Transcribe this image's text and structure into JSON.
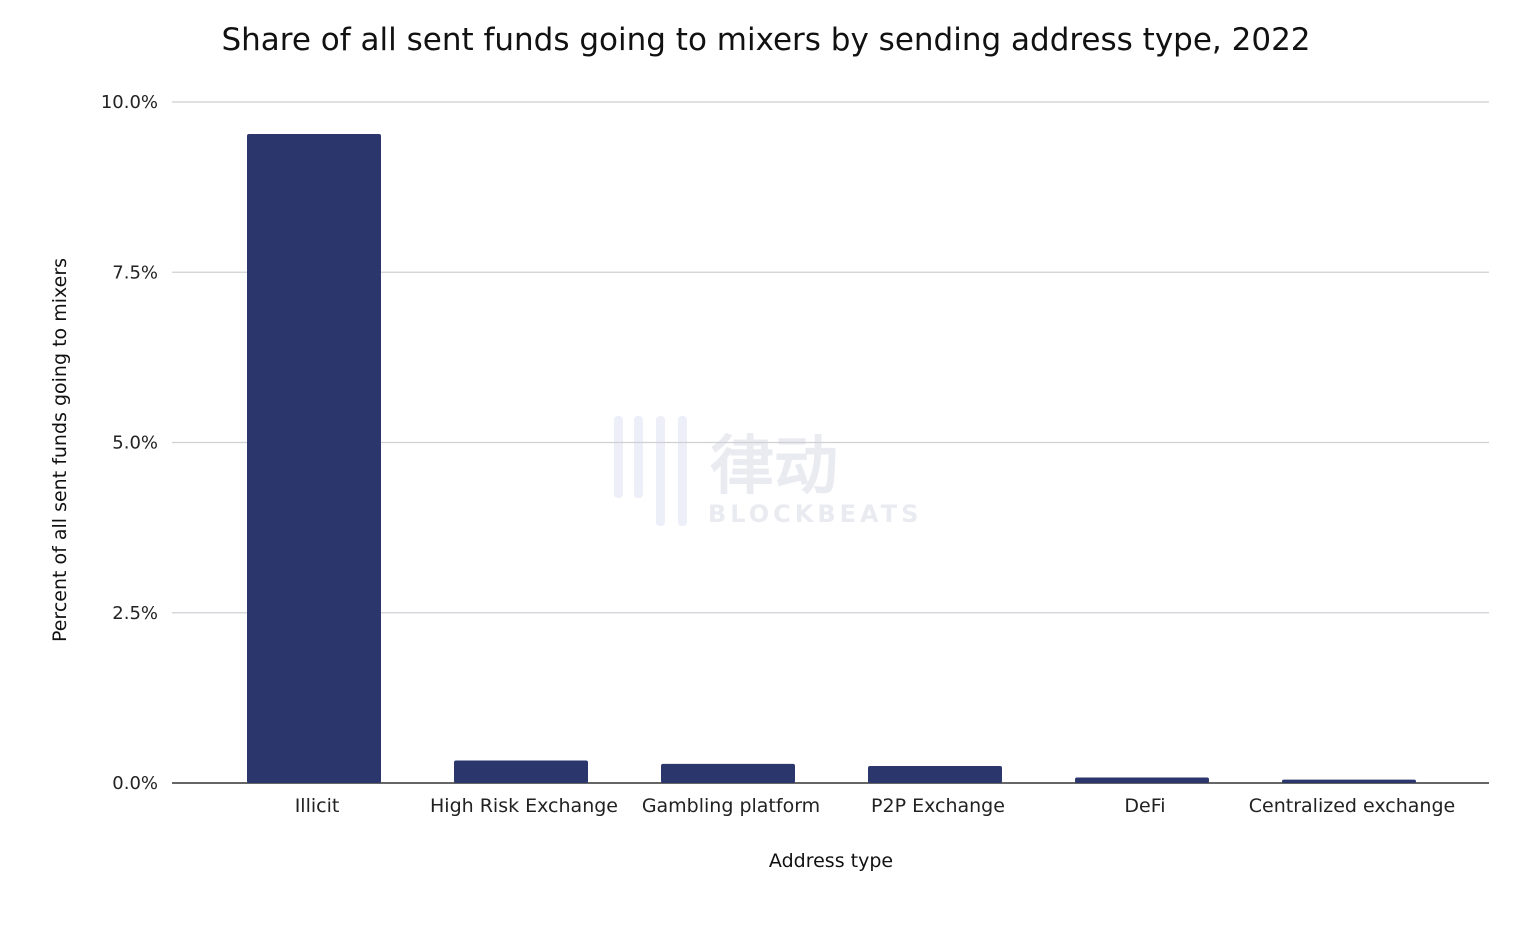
{
  "chart_data": {
    "type": "bar",
    "title": "Share of all sent funds going to mixers by sending address type, 2022",
    "xlabel": "Address type",
    "ylabel": "Percent of all sent funds going to mixers",
    "categories": [
      "Illicit",
      "High Risk Exchange",
      "Gambling platform",
      "P2P Exchange",
      "DeFi",
      "Centralized exchange"
    ],
    "values": [
      9.53,
      0.33,
      0.28,
      0.25,
      0.08,
      0.05
    ],
    "yticks": [
      0,
      2.5,
      5,
      7.5,
      10
    ],
    "ytick_labels": [
      "0.0%",
      "2.5%",
      "5.0%",
      "7.5%",
      "10.0%"
    ],
    "ylim": [
      0,
      10
    ],
    "grid": true,
    "bar_color": "#2b376c"
  },
  "watermark": {
    "glyphs": "律动",
    "sub": "BLOCKBEATS"
  }
}
